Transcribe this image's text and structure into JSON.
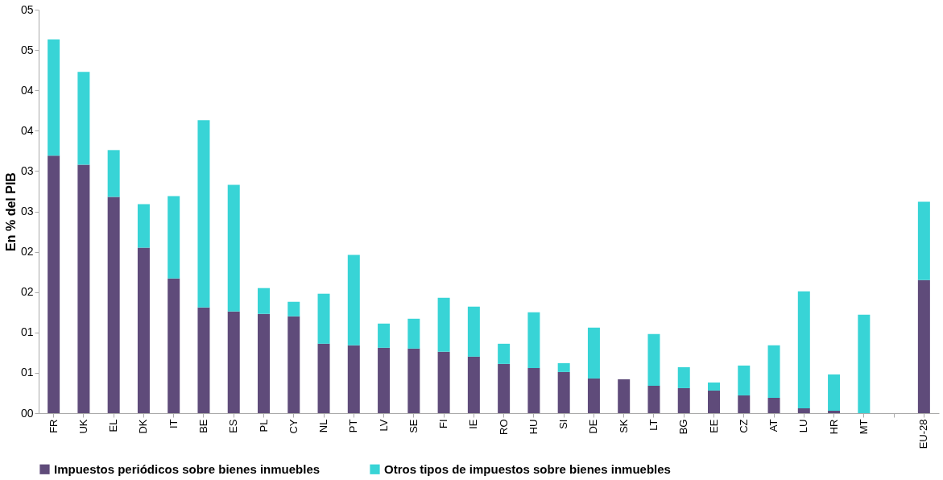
{
  "chart_data": {
    "type": "bar",
    "stacked": true,
    "ylabel": "En % del PIB",
    "categories": [
      "FR",
      "UK",
      "EL",
      "DK",
      "IT",
      "BE",
      "ES",
      "PL",
      "CY",
      "NL",
      "PT",
      "LV",
      "SE",
      "FI",
      "IE",
      "RO",
      "HU",
      "SI",
      "DE",
      "SK",
      "LT",
      "BG",
      "EE",
      "CZ",
      "AT",
      "LU",
      "HR",
      "MT",
      null,
      "EU-28"
    ],
    "series": [
      {
        "name": "Impuestos periódicos sobre bienes inmuebles",
        "color": "#5f4b7a",
        "values": [
          3.19,
          3.08,
          2.68,
          2.05,
          1.67,
          1.31,
          1.26,
          1.23,
          1.2,
          0.86,
          0.84,
          0.81,
          0.8,
          0.76,
          0.7,
          0.61,
          0.56,
          0.51,
          0.43,
          0.42,
          0.34,
          0.31,
          0.28,
          0.22,
          0.19,
          0.06,
          0.03,
          0,
          null,
          1.65
        ]
      },
      {
        "name": "Otros tipos de impuestos sobre bienes inmuebles",
        "color": "#38d4d6",
        "values": [
          1.44,
          1.15,
          0.58,
          0.54,
          1.02,
          2.32,
          1.57,
          0.32,
          0.18,
          0.62,
          1.12,
          0.3,
          0.37,
          0.67,
          0.62,
          0.25,
          0.69,
          0.11,
          0.63,
          0,
          0.64,
          0.26,
          0.1,
          0.37,
          0.65,
          1.45,
          0.45,
          1.22,
          null,
          0.97
        ]
      }
    ],
    "ylim": [
      0,
      5
    ],
    "yticks": [
      {
        "value": 0,
        "label": "00"
      },
      {
        "value": 0.5,
        "label": "01"
      },
      {
        "value": 1,
        "label": "01"
      },
      {
        "value": 1.5,
        "label": "02"
      },
      {
        "value": 2,
        "label": "02"
      },
      {
        "value": 2.5,
        "label": "03"
      },
      {
        "value": 3,
        "label": "03"
      },
      {
        "value": 3.5,
        "label": "04"
      },
      {
        "value": 4,
        "label": "04"
      },
      {
        "value": 4.5,
        "label": "05"
      },
      {
        "value": 5,
        "label": "05"
      }
    ],
    "grid": false,
    "legend": "bottom"
  }
}
